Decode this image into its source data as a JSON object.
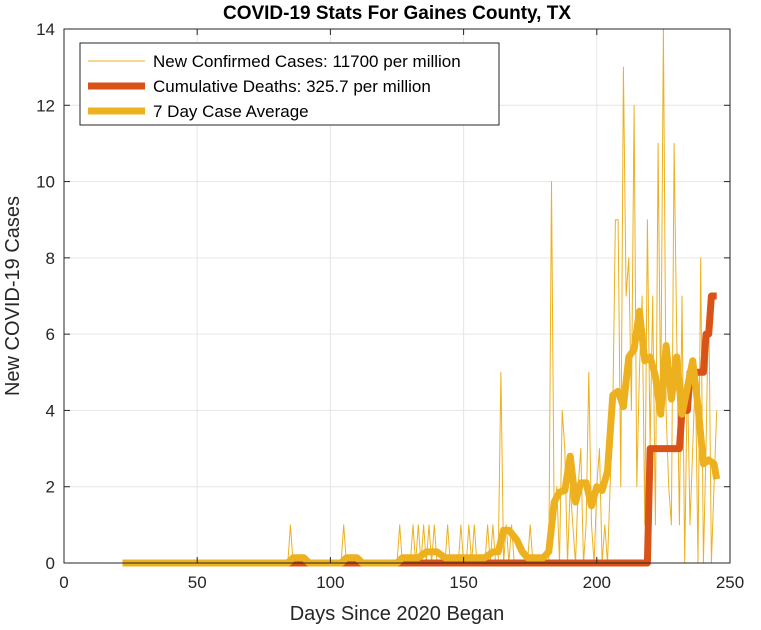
{
  "chart_data": {
    "type": "line",
    "title": "COVID-19 Stats For Gaines County, TX",
    "xlabel": "Days Since 2020 Began",
    "ylabel": "New COVID-19 Cases",
    "xlim": [
      0,
      250
    ],
    "ylim": [
      0,
      14
    ],
    "xticks": [
      0,
      50,
      100,
      150,
      200,
      250
    ],
    "yticks": [
      0,
      2,
      4,
      6,
      8,
      10,
      12,
      14
    ],
    "grid": true,
    "legend_position": "top-left",
    "series": [
      {
        "name": "New Confirmed Cases: 11700 per million",
        "color": "#EDB120",
        "style": "thin",
        "x": [
          22,
          84,
          85,
          86,
          104,
          105,
          106,
          125,
          126,
          127,
          130,
          131,
          132,
          133,
          134,
          135,
          136,
          137,
          138,
          139,
          140,
          141,
          142,
          143,
          144,
          145,
          146,
          147,
          148,
          149,
          150,
          151,
          152,
          153,
          154,
          155,
          156,
          157,
          158,
          159,
          160,
          161,
          162,
          163,
          164,
          165,
          166,
          167,
          168,
          169,
          170,
          171,
          172,
          173,
          174,
          175,
          176,
          177,
          178,
          179,
          180,
          181,
          182,
          183,
          184,
          185,
          186,
          187,
          188,
          189,
          190,
          191,
          192,
          193,
          194,
          195,
          196,
          197,
          198,
          199,
          200,
          201,
          202,
          203,
          204,
          205,
          206,
          207,
          208,
          209,
          210,
          211,
          212,
          213,
          214,
          215,
          216,
          217,
          218,
          219,
          220,
          221,
          222,
          223,
          224,
          225,
          226,
          227,
          228,
          229,
          230,
          231,
          232,
          233,
          234,
          235,
          236,
          237,
          238,
          239,
          240,
          241,
          242,
          243,
          244,
          245
        ],
        "y": [
          0,
          0,
          1,
          0,
          0,
          1,
          0,
          0,
          1,
          0,
          0,
          1,
          0,
          1,
          0,
          1,
          0,
          1,
          0,
          1,
          0,
          0,
          0,
          0,
          1,
          0,
          0,
          0,
          0,
          1,
          0,
          0,
          1,
          0,
          1,
          0,
          0,
          0,
          0,
          1,
          0,
          1,
          0,
          0,
          5,
          0,
          1,
          0,
          1,
          0,
          0,
          0,
          0,
          0,
          0,
          1,
          0,
          0,
          0,
          0,
          0,
          0,
          0,
          10,
          1,
          2,
          0,
          4,
          3,
          0,
          2,
          1,
          0,
          2,
          3,
          0,
          1,
          5,
          1,
          0,
          2,
          3,
          0,
          1,
          0,
          2,
          4,
          9,
          9,
          2,
          13,
          7,
          8,
          4,
          12,
          2,
          5,
          7,
          1,
          9,
          3,
          7,
          1,
          11,
          4,
          14,
          4,
          2,
          1,
          11,
          6,
          1,
          7,
          0,
          5,
          1,
          3,
          5,
          0,
          8,
          0,
          3,
          7,
          0,
          2,
          4
        ]
      },
      {
        "name": "Cumulative Deaths: 325.7 per million",
        "color": "#D95319",
        "style": "thick",
        "x": [
          22,
          219,
          220,
          231,
          232,
          234,
          235,
          240,
          241,
          242,
          243,
          245
        ],
        "y": [
          0,
          0,
          3,
          3,
          4,
          4,
          5,
          5,
          6,
          6,
          7,
          7
        ]
      },
      {
        "name": "7 Day Case Average",
        "color": "#EDB120",
        "style": "thick",
        "x": [
          22,
          84,
          86,
          90,
          92,
          104,
          106,
          110,
          112,
          125,
          127,
          133,
          136,
          140,
          143,
          146,
          149,
          152,
          155,
          158,
          161,
          163,
          165,
          167,
          170,
          172,
          174,
          176,
          180,
          182,
          184,
          186,
          188,
          190,
          192,
          194,
          196,
          198,
          200,
          202,
          204,
          206,
          208,
          210,
          212,
          214,
          216,
          218,
          220,
          222,
          224,
          226,
          228,
          230,
          232,
          234,
          236,
          238,
          240,
          242,
          244,
          245
        ],
        "y": [
          0,
          0,
          0.14,
          0.14,
          0,
          0,
          0.14,
          0.14,
          0,
          0,
          0.14,
          0.14,
          0.29,
          0.29,
          0.14,
          0.14,
          0.14,
          0.14,
          0.14,
          0.14,
          0.29,
          0.29,
          0.86,
          0.86,
          0.6,
          0.3,
          0.14,
          0.14,
          0.14,
          0.3,
          1.6,
          1.86,
          1.9,
          2.8,
          1.6,
          2.1,
          2.1,
          1.5,
          2.0,
          1.9,
          2.4,
          4.4,
          4.5,
          4.1,
          5.4,
          5.6,
          6.6,
          5.3,
          5.4,
          4.9,
          3.9,
          5.7,
          4.3,
          5.4,
          3.9,
          4.6,
          5.3,
          4.1,
          2.6,
          2.7,
          2.6,
          2.2
        ]
      }
    ]
  }
}
